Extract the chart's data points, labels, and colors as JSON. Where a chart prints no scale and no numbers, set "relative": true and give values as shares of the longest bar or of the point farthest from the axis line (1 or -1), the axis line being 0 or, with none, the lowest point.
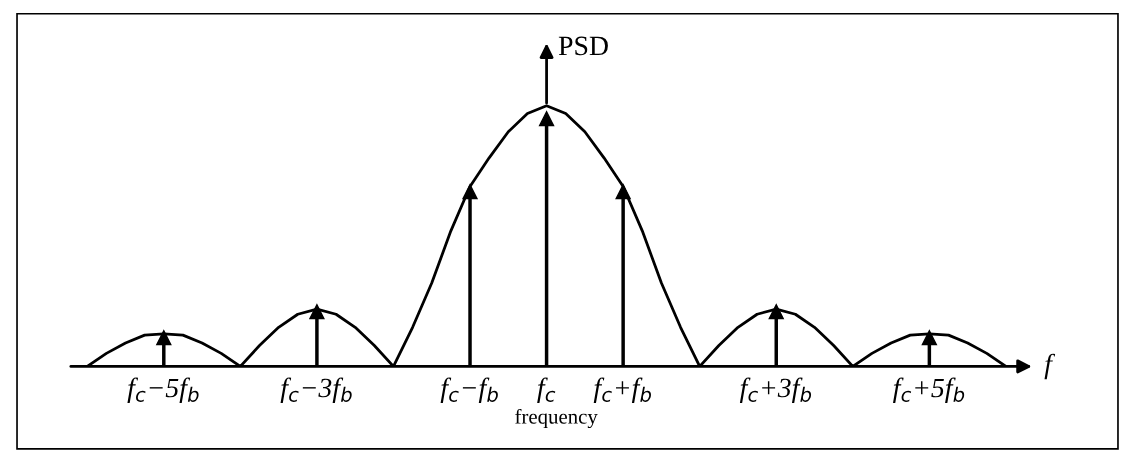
{
  "chart_data": {
    "type": "line",
    "relative": true,
    "ylabel": "PSD",
    "xlabel": "frequency",
    "annotations": [
      "f"
    ],
    "legend": false,
    "categories": [
      null,
      null,
      null,
      null,
      "f$_{c}$−5f$_{b}$",
      null,
      null,
      null,
      null,
      null,
      null,
      null,
      "f$_{c}$−3f$_{b}$",
      null,
      null,
      null,
      null,
      null,
      null,
      null,
      "f$_{c}$−f$_{b}$",
      null,
      null,
      null,
      "f$_{c}$",
      null,
      null,
      null,
      "f$_{c}$+f$_{b}$",
      null,
      null,
      null,
      null,
      null,
      null,
      null,
      "f$_{c}$+3f$_{b}$",
      null,
      null,
      null,
      null,
      null,
      null,
      null,
      "f$_{c}$+5f$_{b}$",
      null,
      null,
      null,
      null
    ],
    "series": [
      {
        "color": "#000000",
        "marker": "none",
        "line_style": "solid",
        "values": [
          0,
          0.05,
          0.09,
          0.12,
          0.125,
          0.12,
          0.09,
          0.05,
          0,
          0.08,
          0.15,
          0.2,
          0.22,
          0.2,
          0.15,
          0.08,
          0,
          0.15,
          0.32,
          0.52,
          0.69,
          0.8,
          0.9,
          0.97,
          1.0,
          0.97,
          0.9,
          0.8,
          0.69,
          0.52,
          0.32,
          0.15,
          0,
          0.08,
          0.15,
          0.2,
          0.22,
          0.2,
          0.15,
          0.08,
          0,
          0.05,
          0.09,
          0.12,
          0.125,
          0.12,
          0.09,
          0.05,
          0
        ]
      },
      {
        "type": "lollipop",
        "color": "#000000",
        "marker": "triangle",
        "values": [
          null,
          null,
          null,
          null,
          0.11,
          null,
          null,
          null,
          null,
          null,
          null,
          null,
          0.21,
          null,
          null,
          null,
          null,
          null,
          null,
          null,
          0.67,
          null,
          null,
          null,
          0.95,
          null,
          null,
          null,
          0.67,
          null,
          null,
          null,
          null,
          null,
          null,
          null,
          0.21,
          null,
          null,
          null,
          null,
          null,
          null,
          null,
          0.11,
          null,
          null,
          null,
          null
        ]
      }
    ]
  }
}
